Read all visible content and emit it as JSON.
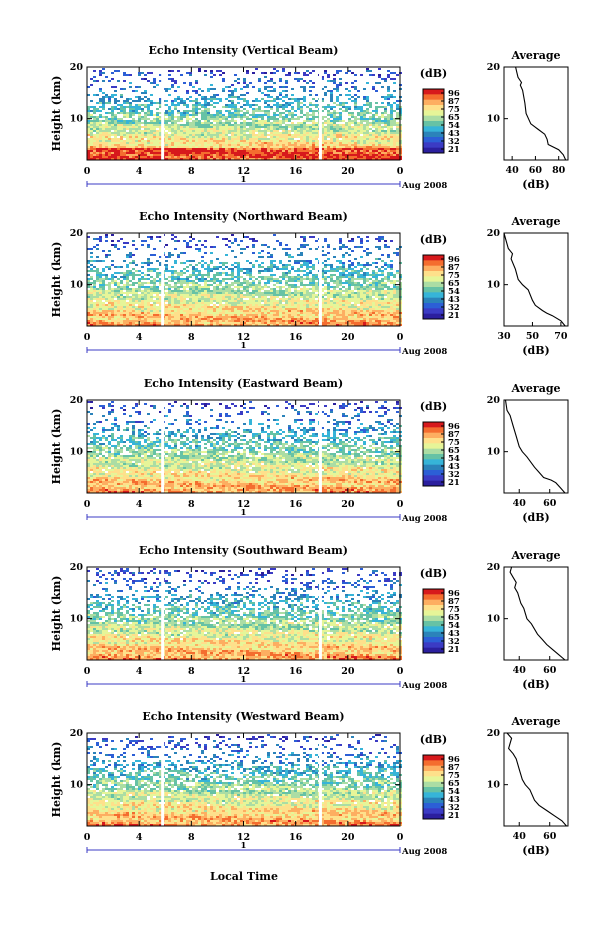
{
  "chart_data": {
    "type": "heatmap",
    "figure_xlabel": "Local Time",
    "date_label": "Aug 2008",
    "day_label": "1",
    "heatmap": {
      "ylabel": "Height (km)",
      "x_ticks": [
        "0",
        "4",
        "8",
        "12",
        "16",
        "20",
        "0"
      ],
      "x_range_hours": [
        0,
        24
      ],
      "y_ticks": [
        "20",
        "10"
      ],
      "y_range_km": [
        2,
        20
      ],
      "data_gap_hours": [
        5.8,
        17.9
      ]
    },
    "colorbar": {
      "unit": "(dB)",
      "tick_labels": [
        "96",
        "87",
        "75",
        "65",
        "54",
        "43",
        "32",
        "21"
      ],
      "colors": [
        "#d7191c",
        "#f46d2f",
        "#fdae61",
        "#fee08b",
        "#e6f598",
        "#abdda4",
        "#66c2a5",
        "#36b4d8",
        "#2b83ba",
        "#2c5fd6",
        "#3b3bc4",
        "#2b1f9e"
      ]
    },
    "panels": [
      {
        "title": "Echo Intensity (Vertical Beam)",
        "profile": {
          "title": "Average",
          "xlabel": "(dB)",
          "x_ticks": [
            "40",
            "60",
            "80"
          ],
          "xlim": [
            33,
            88
          ],
          "y_ticks": [
            "20",
            "10"
          ],
          "ylim": [
            2,
            20
          ],
          "x": [
            43,
            44,
            45,
            48,
            47,
            49,
            51,
            52,
            56,
            62,
            68,
            70,
            71,
            80,
            84,
            86
          ],
          "y": [
            20,
            19,
            18,
            17,
            16.5,
            15.5,
            13,
            11,
            9,
            8,
            7,
            6,
            5,
            4,
            3,
            2
          ]
        }
      },
      {
        "title": "Echo Intensity (Northward Beam)",
        "profile": {
          "title": "Average",
          "xlabel": "(dB)",
          "x_ticks": [
            "30",
            "50",
            "70"
          ],
          "xlim": [
            30,
            75
          ],
          "y_ticks": [
            "20",
            "10"
          ],
          "ylim": [
            2,
            20
          ],
          "x": [
            30,
            31,
            33,
            36,
            35,
            38,
            40,
            43,
            47,
            50,
            52,
            57,
            60,
            64,
            70,
            73
          ],
          "y": [
            20,
            19,
            17,
            16,
            15,
            13,
            11,
            10,
            9,
            7,
            6,
            5,
            4.5,
            4,
            3,
            2
          ]
        }
      },
      {
        "title": "Echo Intensity (Eastward Beam)",
        "profile": {
          "title": "Average",
          "xlabel": "(dB)",
          "x_ticks": [
            "40",
            "60"
          ],
          "xlim": [
            30,
            72
          ],
          "y_ticks": [
            "20",
            "10"
          ],
          "ylim": [
            2,
            20
          ],
          "x": [
            31,
            32,
            34,
            36,
            38,
            40,
            42,
            45,
            50,
            53,
            56,
            61,
            64,
            67,
            70
          ],
          "y": [
            20,
            18,
            17,
            15,
            13,
            11,
            10,
            9,
            7,
            6,
            5,
            4.5,
            4,
            3,
            2
          ]
        }
      },
      {
        "title": "Echo Intensity (Southward Beam)",
        "profile": {
          "title": "Average",
          "xlabel": "(dB)",
          "x_ticks": [
            "40",
            "60"
          ],
          "xlim": [
            30,
            72
          ],
          "y_ticks": [
            "20",
            "10"
          ],
          "ylim": [
            2,
            20
          ],
          "x": [
            35,
            34,
            36,
            38,
            37,
            39,
            41,
            43,
            45,
            48,
            52,
            55,
            58,
            62,
            66,
            70
          ],
          "y": [
            20,
            19,
            18,
            17,
            16,
            15,
            13,
            12,
            10,
            9,
            7,
            6,
            5,
            4,
            3,
            2
          ]
        }
      },
      {
        "title": "Echo Intensity (Westward Beam)",
        "profile": {
          "title": "Average",
          "xlabel": "(dB)",
          "x_ticks": [
            "40",
            "60"
          ],
          "xlim": [
            30,
            72
          ],
          "y_ticks": [
            "20",
            "10"
          ],
          "ylim": [
            2,
            20
          ],
          "x": [
            32,
            35,
            34,
            33,
            36,
            38,
            40,
            42,
            44,
            47,
            50,
            53,
            58,
            63,
            68,
            71
          ],
          "y": [
            20,
            19,
            18,
            17,
            16,
            15,
            13,
            11,
            10,
            9,
            7,
            6,
            5,
            4,
            3,
            2
          ]
        }
      }
    ]
  }
}
